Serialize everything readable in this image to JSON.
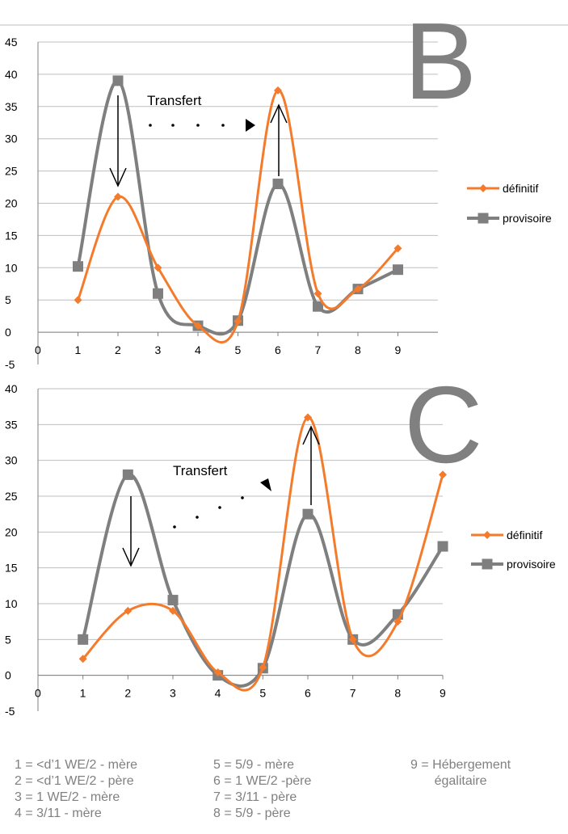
{
  "colors": {
    "definitif": "#f37b2b",
    "provisoire": "#7f7f7f",
    "grid": "#bfbfbf",
    "letter": "#808080",
    "footnote": "#808080"
  },
  "chart_data": [
    {
      "type": "line",
      "panel_letter": "B",
      "x": [
        1,
        2,
        3,
        4,
        5,
        6,
        7,
        8,
        9
      ],
      "xlim": [
        0,
        10
      ],
      "x_ticks": [
        "0",
        "1",
        "2",
        "3",
        "4",
        "5",
        "6",
        "7",
        "8",
        "9"
      ],
      "ylim": [
        -5,
        45
      ],
      "y_ticks": [
        "-5",
        "0",
        "5",
        "10",
        "15",
        "20",
        "25",
        "30",
        "35",
        "40",
        "45"
      ],
      "grid": true,
      "legend": "right",
      "annotation": "Transfert",
      "series": [
        {
          "name": "définitif",
          "marker": "diamond",
          "values": [
            5,
            21,
            10,
            1,
            1.7,
            37.5,
            6,
            6.7,
            13
          ]
        },
        {
          "name": "provisoire",
          "marker": "square",
          "values": [
            10.2,
            39,
            6,
            1,
            1.8,
            23,
            4,
            6.7,
            9.7
          ]
        }
      ]
    },
    {
      "type": "line",
      "panel_letter": "C",
      "x": [
        1,
        2,
        3,
        4,
        5,
        6,
        7,
        8,
        9
      ],
      "xlim": [
        0,
        9
      ],
      "x_ticks": [
        "0",
        "1",
        "2",
        "3",
        "4",
        "5",
        "6",
        "7",
        "8",
        "9"
      ],
      "ylim": [
        -5,
        40
      ],
      "y_ticks": [
        "-5",
        "0",
        "5",
        "10",
        "15",
        "20",
        "25",
        "30",
        "35",
        "40"
      ],
      "grid": true,
      "legend": "right",
      "annotation": "Transfert",
      "series": [
        {
          "name": "définitif",
          "marker": "diamond",
          "values": [
            2.3,
            9,
            9,
            0.4,
            1.1,
            36,
            5,
            7.5,
            28
          ]
        },
        {
          "name": "provisoire",
          "marker": "square",
          "values": [
            5,
            28,
            10.5,
            0,
            1,
            22.5,
            5,
            8.5,
            18
          ]
        }
      ]
    }
  ],
  "footnote": {
    "col1": [
      "1 = <d’1 WE/2 - mère",
      "2 = <d’1 WE/2 - père",
      "3 = 1 WE/2 - mère",
      "4 = 3/11 - mère"
    ],
    "col2": [
      "5 = 5/9 - mère",
      "6 = 1 WE/2 -père",
      "7 = 3/11 - père",
      "8 = 5/9 - père"
    ],
    "col3": [
      "9 = Hébergement",
      "égalitaire"
    ]
  }
}
